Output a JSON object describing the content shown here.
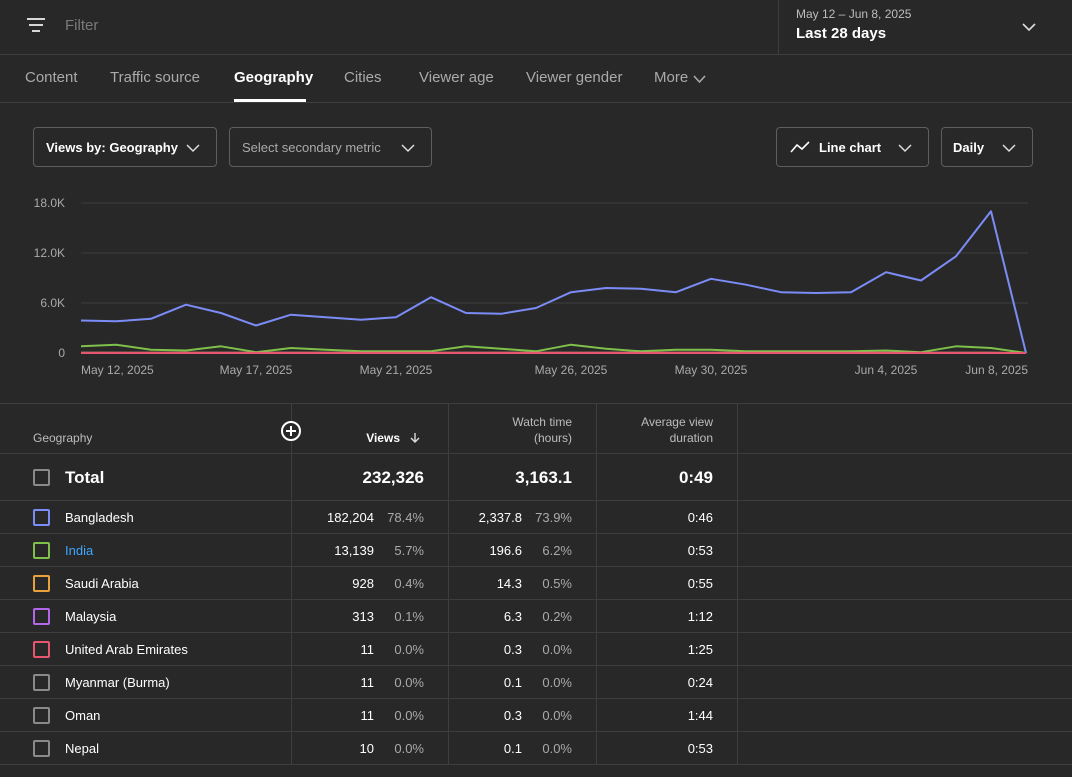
{
  "filter": {
    "placeholder": "Filter"
  },
  "date": {
    "range": "May 12 – Jun 8, 2025",
    "label": "Last 28 days"
  },
  "tabs": [
    "Content",
    "Traffic source",
    "Geography",
    "Cities",
    "Viewer age",
    "Viewer gender",
    "More"
  ],
  "active_tab": "Geography",
  "controls": {
    "primary_metric": "Views by: Geography",
    "secondary_metric": "Select secondary metric",
    "chart_type": "Line chart",
    "interval": "Daily"
  },
  "colors": {
    "Bangladesh": "#7b8cf7",
    "India": "#7ec04a",
    "Saudi Arabia": "#e9a23b",
    "Malaysia": "#b367e8",
    "United Arab Emirates": "#e8556e",
    "link": "#3ea6ff"
  },
  "chart_data": {
    "type": "line",
    "x_tick_labels": [
      "May 12, 2025",
      "May 17, 2025",
      "May 21, 2025",
      "May 26, 2025",
      "May 30, 2025",
      "Jun 4, 2025",
      "Jun 8, 2025"
    ],
    "y_tick_labels": [
      "0",
      "6.0K",
      "12.0K",
      "18.0K"
    ],
    "ylim": [
      0,
      18000
    ],
    "grid": true,
    "series": [
      {
        "name": "Bangladesh",
        "values": [
          3900,
          3800,
          4100,
          5800,
          4800,
          3300,
          4600,
          4300,
          4000,
          4300,
          6700,
          4800,
          4700,
          5400,
          7300,
          7800,
          7700,
          7300,
          8900,
          8200,
          7300,
          7200,
          7300,
          9700,
          8700,
          11600,
          17000,
          0
        ]
      },
      {
        "name": "India",
        "values": [
          800,
          1000,
          400,
          300,
          800,
          100,
          600,
          400,
          200,
          200,
          200,
          800,
          500,
          200,
          1000,
          500,
          200,
          400,
          400,
          200,
          200,
          200,
          200,
          300,
          100,
          800,
          600,
          0
        ]
      },
      {
        "name": "Saudi Arabia",
        "values": [
          30,
          30,
          30,
          30,
          30,
          30,
          30,
          30,
          30,
          30,
          30,
          30,
          30,
          30,
          30,
          30,
          30,
          30,
          30,
          30,
          30,
          30,
          30,
          30,
          30,
          30,
          30,
          0
        ]
      },
      {
        "name": "Malaysia",
        "values": [
          10,
          10,
          10,
          10,
          10,
          10,
          10,
          10,
          10,
          10,
          10,
          10,
          10,
          10,
          10,
          10,
          10,
          10,
          10,
          10,
          10,
          10,
          10,
          10,
          10,
          10,
          10,
          0
        ]
      },
      {
        "name": "United Arab Emirates",
        "values": [
          0,
          0,
          0,
          0,
          0,
          0,
          0,
          0,
          0,
          0,
          0,
          0,
          0,
          0,
          0,
          0,
          0,
          0,
          0,
          0,
          0,
          0,
          0,
          0,
          0,
          0,
          0,
          0
        ]
      }
    ]
  },
  "table": {
    "headers": {
      "geography": "Geography",
      "views": "Views",
      "watch_time_1": "Watch time",
      "watch_time_2": "(hours)",
      "avd_1": "Average view",
      "avd_2": "duration"
    },
    "total": {
      "label": "Total",
      "views": "232,326",
      "watch_time": "3,163.1",
      "avd": "0:49"
    },
    "rows": [
      {
        "name": "Bangladesh",
        "views": "182,204",
        "views_pct": "78.4%",
        "watch": "2,337.8",
        "watch_pct": "73.9%",
        "avd": "0:46"
      },
      {
        "name": "India",
        "views": "13,139",
        "views_pct": "5.7%",
        "watch": "196.6",
        "watch_pct": "6.2%",
        "avd": "0:53"
      },
      {
        "name": "Saudi Arabia",
        "views": "928",
        "views_pct": "0.4%",
        "watch": "14.3",
        "watch_pct": "0.5%",
        "avd": "0:55"
      },
      {
        "name": "Malaysia",
        "views": "313",
        "views_pct": "0.1%",
        "watch": "6.3",
        "watch_pct": "0.2%",
        "avd": "1:12"
      },
      {
        "name": "United Arab Emirates",
        "views": "11",
        "views_pct": "0.0%",
        "watch": "0.3",
        "watch_pct": "0.0%",
        "avd": "1:25"
      },
      {
        "name": "Myanmar (Burma)",
        "views": "11",
        "views_pct": "0.0%",
        "watch": "0.1",
        "watch_pct": "0.0%",
        "avd": "0:24"
      },
      {
        "name": "Oman",
        "views": "11",
        "views_pct": "0.0%",
        "watch": "0.3",
        "watch_pct": "0.0%",
        "avd": "1:44"
      },
      {
        "name": "Nepal",
        "views": "10",
        "views_pct": "0.0%",
        "watch": "0.1",
        "watch_pct": "0.0%",
        "avd": "0:53"
      }
    ]
  }
}
